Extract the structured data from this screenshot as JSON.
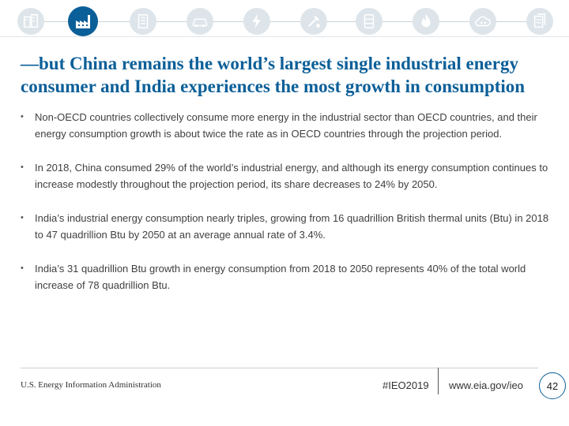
{
  "nav": {
    "icons": [
      "buildings-icon",
      "industrial-factory-icon",
      "commercial-buildings-icon",
      "transportation-car-icon",
      "electricity-icon",
      "renewables-tools-icon",
      "petroleum-barrel-icon",
      "natural-gas-flame-icon",
      "coal-co2-icon",
      "documents-icon"
    ],
    "active": "industrial-factory-icon",
    "accent_color": "#0b5f98",
    "inactive_color": "#dde5ea"
  },
  "slide": {
    "title": "—but China remains the world’s largest single industrial energy consumer and India experiences the most growth in consumption",
    "bullets": [
      "Non-OECD countries collectively consume more energy in the industrial sector than OECD countries, and their energy consumption growth is about twice the rate as in OECD countries through the projection period.",
      "In 2018, China consumed 29% of the world’s industrial energy, and although its energy consumption continues to increase modestly throughout the projection period, its share decreases to 24% by 2050.",
      "India’s industrial energy consumption nearly triples, growing from 16 quadrillion British thermal units (Btu) in 2018 to 47 quadrillion Btu by 2050 at an average annual rate of 3.4%.",
      "India’s 31 quadrillion Btu growth in energy consumption from 2018 to 2050 represents 40% of the total world increase of 78 quadrillion Btu."
    ],
    "bullet_mark": "•"
  },
  "footer": {
    "org": "U.S. Energy Information Administration",
    "hashtag": "#IEO2019",
    "url": "www.eia.gov/ieo",
    "page_number": "42"
  }
}
